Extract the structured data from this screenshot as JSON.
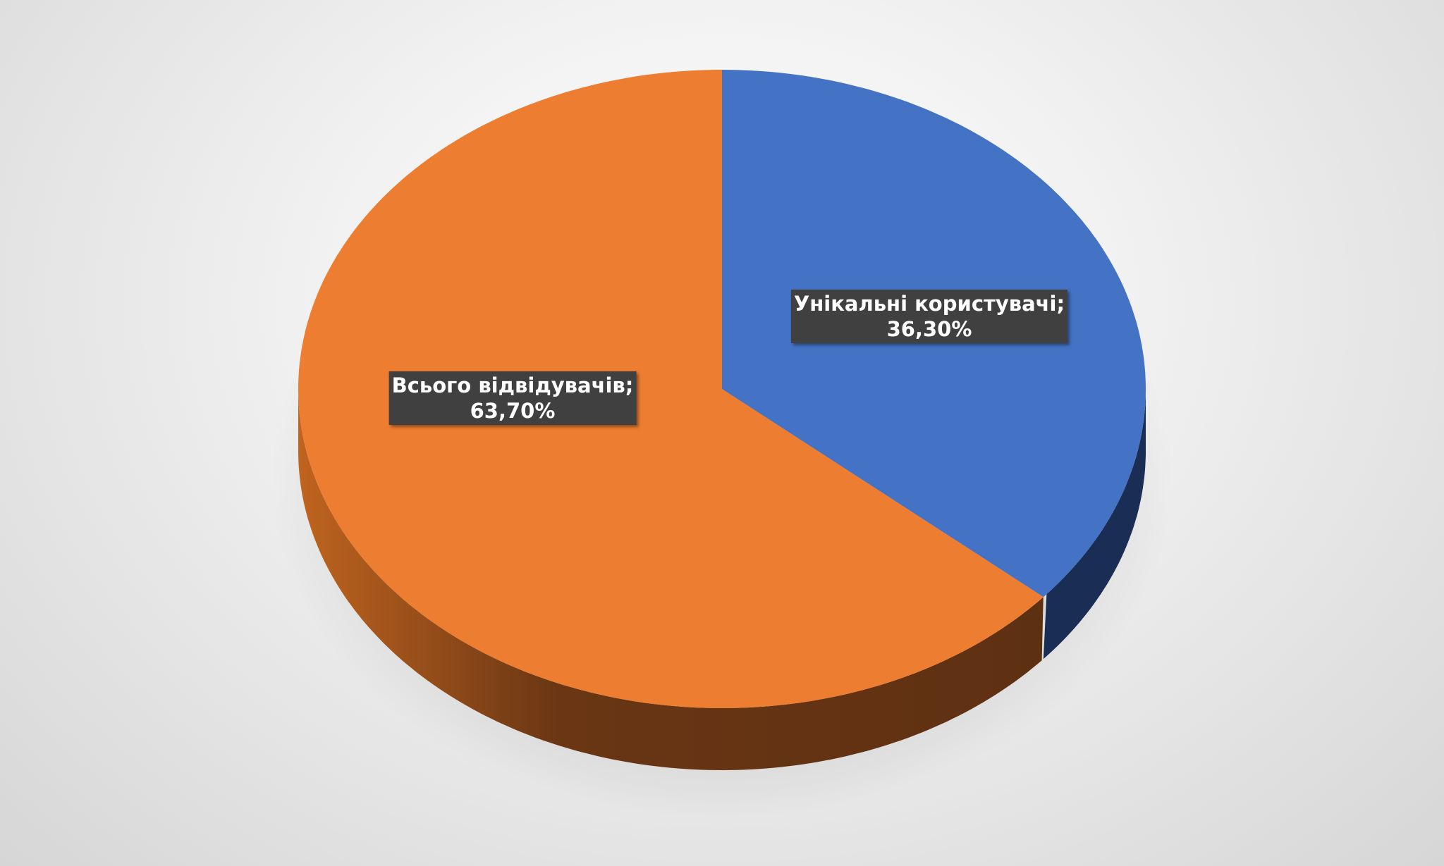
{
  "chart_data": {
    "type": "pie",
    "style": "3d",
    "slices": [
      {
        "label": "Унікальні користувачі",
        "value": 36.3,
        "display": "36,30%",
        "color": "#4472C4",
        "side_color": "#1a2d55"
      },
      {
        "label": "Всього відвідувачів",
        "value": 63.7,
        "display": "63,70%",
        "color": "#ED7D31",
        "side_color": "#5e3012"
      }
    ],
    "legend": "none"
  }
}
